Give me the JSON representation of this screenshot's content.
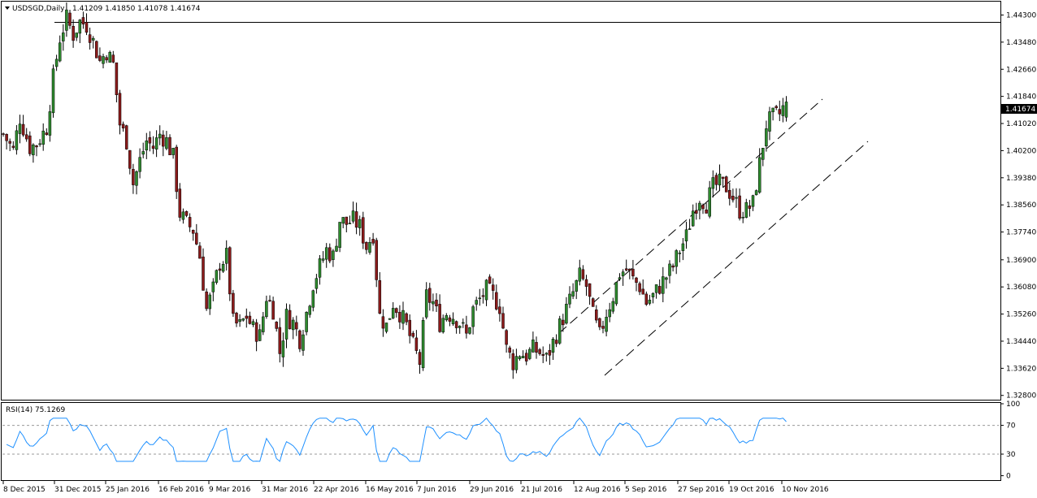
{
  "header": {
    "symbol": "USDSGD,Daily",
    "ohlc": "1.41209 1.41850 1.41078 1.41674",
    "dropdown_icon": "triangle-down-icon"
  },
  "chart_data": [
    {
      "type": "candlestick",
      "title": "USDSGD,Daily",
      "subtitle": "1.41209 1.41850 1.41078 1.41674",
      "ylim": [
        1.3272,
        1.4468
      ],
      "y_ticks": [
        "1.44300",
        "1.43480",
        "1.42660",
        "1.41840",
        "1.41020",
        "1.40200",
        "1.39380",
        "1.38560",
        "1.37740",
        "1.36900",
        "1.36080",
        "1.35260",
        "1.34440",
        "1.33620",
        "1.32800"
      ],
      "x_ticks": [
        "8 Dec 2015",
        "31 Dec 2015",
        "25 Jan 2016",
        "16 Feb 2016",
        "9 Mar 2016",
        "31 Mar 2016",
        "22 Apr 2016",
        "16 May 2016",
        "7 Jun 2016",
        "29 Jun 2016",
        "21 Jul 2016",
        "12 Aug 2016",
        "5 Sep 2016",
        "27 Sep 2016",
        "19 Oct 2016",
        "10 Nov 2016"
      ],
      "current_price": "1.41674",
      "bull_color": "#2e8b2e",
      "bear_color": "#8b1a1a",
      "price_path": [
        [
          0,
          1.407
        ],
        [
          3,
          1.402
        ],
        [
          5,
          1.412
        ],
        [
          8,
          1.403
        ],
        [
          10,
          1.404
        ],
        [
          13,
          1.409
        ],
        [
          15,
          1.424
        ],
        [
          17,
          1.436
        ],
        [
          19,
          1.442
        ],
        [
          21,
          1.437
        ],
        [
          23,
          1.441
        ],
        [
          25,
          1.44
        ],
        [
          27,
          1.435
        ],
        [
          29,
          1.429
        ],
        [
          31,
          1.432
        ],
        [
          33,
          1.428
        ],
        [
          35,
          1.41
        ],
        [
          37,
          1.405
        ],
        [
          39,
          1.392
        ],
        [
          41,
          1.399
        ],
        [
          43,
          1.405
        ],
        [
          45,
          1.403
        ],
        [
          47,
          1.407
        ],
        [
          49,
          1.405
        ],
        [
          51,
          1.4
        ],
        [
          53,
          1.383
        ],
        [
          55,
          1.38
        ],
        [
          57,
          1.378
        ],
        [
          59,
          1.37
        ],
        [
          61,
          1.354
        ],
        [
          63,
          1.36
        ],
        [
          65,
          1.368
        ],
        [
          67,
          1.37
        ],
        [
          69,
          1.35
        ],
        [
          71,
          1.349
        ],
        [
          73,
          1.352
        ],
        [
          75,
          1.348
        ],
        [
          77,
          1.346
        ],
        [
          79,
          1.358
        ],
        [
          81,
          1.354
        ],
        [
          83,
          1.341
        ],
        [
          85,
          1.352
        ],
        [
          87,
          1.35
        ],
        [
          89,
          1.345
        ],
        [
          91,
          1.353
        ],
        [
          93,
          1.362
        ],
        [
          95,
          1.367
        ],
        [
          97,
          1.372
        ],
        [
          99,
          1.37
        ],
        [
          101,
          1.381
        ],
        [
          103,
          1.38
        ],
        [
          105,
          1.381
        ],
        [
          107,
          1.379
        ],
        [
          109,
          1.373
        ],
        [
          111,
          1.377
        ],
        [
          113,
          1.352
        ],
        [
          115,
          1.349
        ],
        [
          117,
          1.356
        ],
        [
          119,
          1.353
        ],
        [
          121,
          1.349
        ],
        [
          123,
          1.343
        ],
        [
          125,
          1.338
        ],
        [
          127,
          1.358
        ],
        [
          129,
          1.356
        ],
        [
          131,
          1.35
        ],
        [
          133,
          1.353
        ],
        [
          135,
          1.352
        ],
        [
          137,
          1.35
        ],
        [
          139,
          1.346
        ],
        [
          141,
          1.354
        ],
        [
          143,
          1.357
        ],
        [
          145,
          1.36
        ],
        [
          147,
          1.358
        ],
        [
          149,
          1.355
        ],
        [
          151,
          1.342
        ],
        [
          153,
          1.338
        ],
        [
          155,
          1.341
        ],
        [
          157,
          1.34
        ],
        [
          159,
          1.342
        ],
        [
          161,
          1.341
        ],
        [
          163,
          1.339
        ],
        [
          165,
          1.344
        ],
        [
          167,
          1.349
        ],
        [
          169,
          1.354
        ],
        [
          171,
          1.359
        ],
        [
          173,
          1.364
        ],
        [
          175,
          1.361
        ],
        [
          177,
          1.352
        ],
        [
          179,
          1.346
        ],
        [
          181,
          1.353
        ],
        [
          183,
          1.358
        ],
        [
          185,
          1.365
        ],
        [
          187,
          1.366
        ],
        [
          189,
          1.363
        ],
        [
          191,
          1.361
        ],
        [
          193,
          1.356
        ],
        [
          195,
          1.358
        ],
        [
          197,
          1.361
        ],
        [
          199,
          1.364
        ],
        [
          201,
          1.367
        ],
        [
          203,
          1.372
        ],
        [
          205,
          1.376
        ],
        [
          207,
          1.384
        ],
        [
          209,
          1.388
        ],
        [
          211,
          1.386
        ],
        [
          213,
          1.391
        ],
        [
          215,
          1.392
        ],
        [
          217,
          1.391
        ],
        [
          219,
          1.388
        ],
        [
          221,
          1.384
        ],
        [
          223,
          1.384
        ],
        [
          225,
          1.386
        ],
        [
          227,
          1.398
        ],
        [
          229,
          1.41
        ],
        [
          231,
          1.412
        ],
        [
          233,
          1.413
        ],
        [
          235,
          1.4167
        ]
      ]
    },
    {
      "type": "line",
      "title": "RSI(14) 75.1269",
      "ylim": [
        -5,
        100
      ],
      "y_ticks": [
        100,
        70,
        30,
        0
      ],
      "levels": [
        70,
        30
      ],
      "line_color": "#1e90ff",
      "last_value": 75.1269
    }
  ]
}
